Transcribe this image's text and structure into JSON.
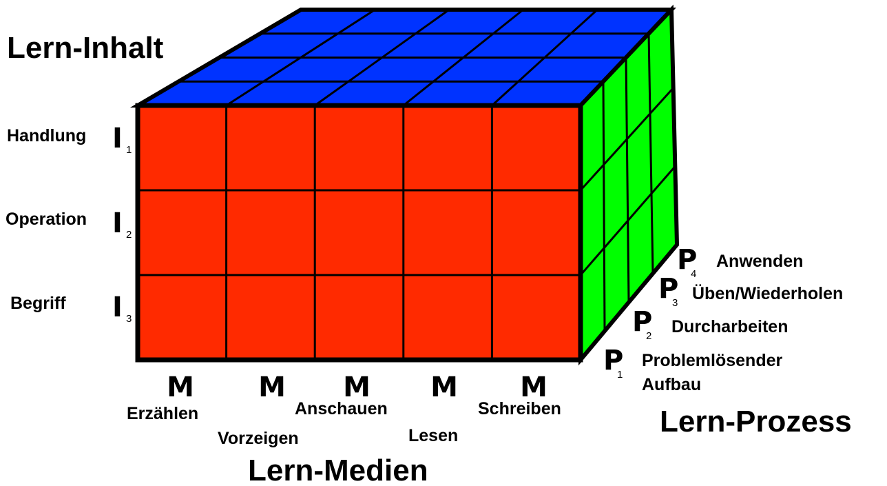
{
  "header": {
    "title": "Lern-Inhalt"
  },
  "inhalt": [
    {
      "label": "Handlung",
      "symbol": "I",
      "index": "1"
    },
    {
      "label": "Operation",
      "symbol": "I",
      "index": "2"
    },
    {
      "label": "Begriff",
      "symbol": "I",
      "index": "3"
    }
  ],
  "medien": {
    "title": "Lern-Medien",
    "items": [
      {
        "symbol": "M",
        "label": "Erzählen"
      },
      {
        "symbol": "M",
        "label": "Vorzeigen"
      },
      {
        "symbol": "M",
        "label": "Anschauen"
      },
      {
        "symbol": "M",
        "label": "Lesen"
      },
      {
        "symbol": "M",
        "label": "Schreiben"
      }
    ]
  },
  "prozess": {
    "title": "Lern-Prozess",
    "items": [
      {
        "symbol": "P",
        "index": "4",
        "lines": [
          "Anwenden"
        ]
      },
      {
        "symbol": "P",
        "index": "3",
        "lines": [
          "Üben/Wiederholen"
        ]
      },
      {
        "symbol": "P",
        "index": "2",
        "lines": [
          "Durcharbeiten"
        ]
      },
      {
        "symbol": "P",
        "index": "1",
        "lines": [
          "Problemlösender",
          "Aufbau"
        ]
      }
    ]
  }
}
